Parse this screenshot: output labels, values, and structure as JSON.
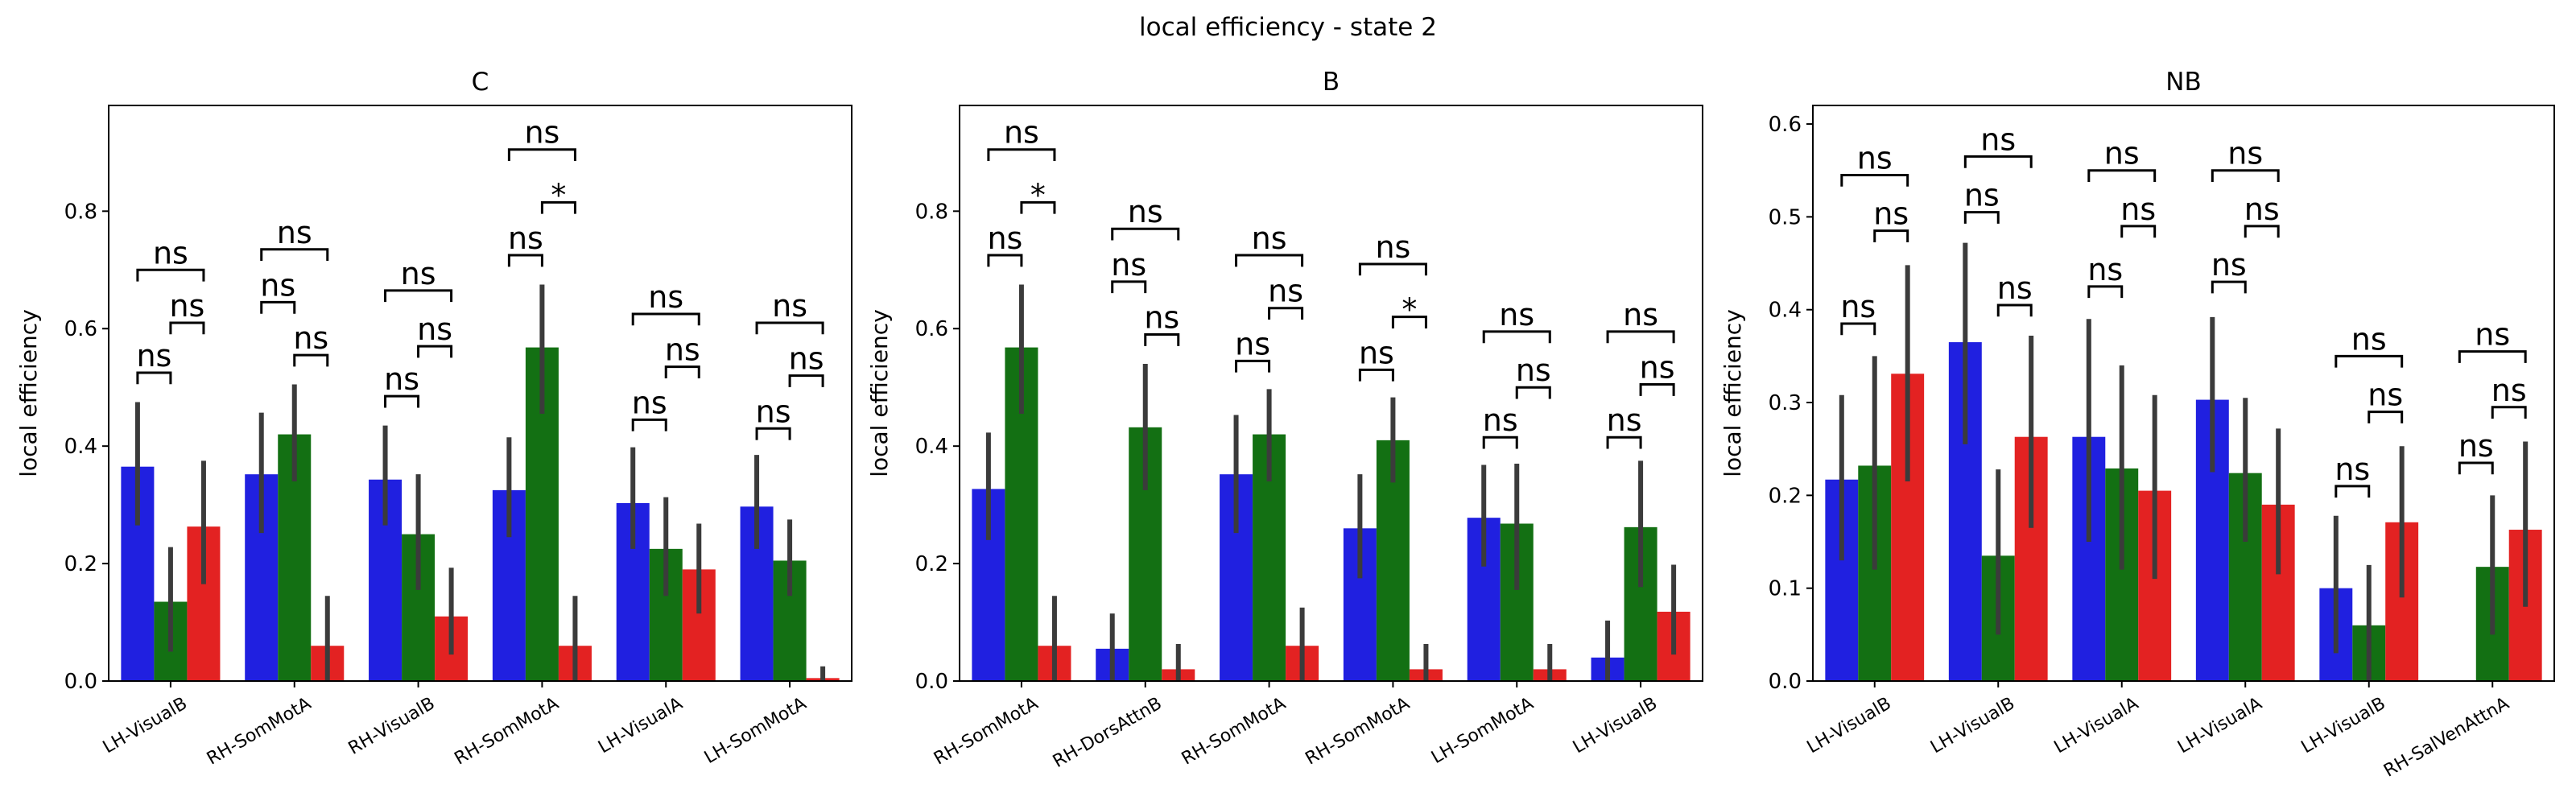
{
  "suptitle": "local efficiency - state 2",
  "colors": {
    "bar1": "#2020e0",
    "bar2": "#137013",
    "bar3": "#e32222",
    "err": "#3b3b3b"
  },
  "chart_data": [
    {
      "type": "bar",
      "title": "C",
      "ylabel": "local efficiency",
      "ylim": [
        0,
        0.98
      ],
      "yticks": [
        0.0,
        0.2,
        0.4,
        0.6,
        0.8
      ],
      "categories": [
        "LH-VisualB",
        "RH-SomMotA",
        "RH-VisualB",
        "RH-SomMotA",
        "LH-VisualA",
        "LH-SomMotA"
      ],
      "series": [
        {
          "values": [
            0.365,
            0.352,
            0.343,
            0.325,
            0.303,
            0.297
          ],
          "lo": [
            0.265,
            0.252,
            0.265,
            0.245,
            0.225,
            0.225
          ],
          "hi": [
            0.475,
            0.457,
            0.435,
            0.415,
            0.398,
            0.385
          ]
        },
        {
          "values": [
            0.135,
            0.42,
            0.25,
            0.568,
            0.225,
            0.205
          ],
          "lo": [
            0.05,
            0.34,
            0.155,
            0.455,
            0.145,
            0.145
          ],
          "hi": [
            0.228,
            0.505,
            0.352,
            0.675,
            0.313,
            0.275
          ]
        },
        {
          "values": [
            0.263,
            0.06,
            0.11,
            0.06,
            0.19,
            0.005
          ],
          "lo": [
            0.165,
            0.0,
            0.045,
            0.0,
            0.115,
            0.0
          ],
          "hi": [
            0.375,
            0.145,
            0.193,
            0.145,
            0.268,
            0.025
          ]
        }
      ],
      "annotations": [
        {
          "group": 0,
          "from": 0,
          "to": 1,
          "y": 0.525,
          "text": "ns"
        },
        {
          "group": 0,
          "from": 1,
          "to": 2,
          "y": 0.61,
          "text": "ns"
        },
        {
          "group": 0,
          "from": 0,
          "to": 2,
          "y": 0.7,
          "text": "ns"
        },
        {
          "group": 1,
          "from": 0,
          "to": 1,
          "y": 0.645,
          "text": "ns"
        },
        {
          "group": 1,
          "from": 1,
          "to": 2,
          "y": 0.555,
          "text": "ns"
        },
        {
          "group": 1,
          "from": 0,
          "to": 2,
          "y": 0.735,
          "text": "ns"
        },
        {
          "group": 2,
          "from": 0,
          "to": 1,
          "y": 0.485,
          "text": "ns"
        },
        {
          "group": 2,
          "from": 1,
          "to": 2,
          "y": 0.57,
          "text": "ns"
        },
        {
          "group": 2,
          "from": 0,
          "to": 2,
          "y": 0.665,
          "text": "ns"
        },
        {
          "group": 3,
          "from": 0,
          "to": 1,
          "y": 0.725,
          "text": "ns"
        },
        {
          "group": 3,
          "from": 1,
          "to": 2,
          "y": 0.815,
          "text": "*"
        },
        {
          "group": 3,
          "from": 0,
          "to": 2,
          "y": 0.905,
          "text": "ns"
        },
        {
          "group": 4,
          "from": 0,
          "to": 1,
          "y": 0.445,
          "text": "ns"
        },
        {
          "group": 4,
          "from": 1,
          "to": 2,
          "y": 0.535,
          "text": "ns"
        },
        {
          "group": 4,
          "from": 0,
          "to": 2,
          "y": 0.625,
          "text": "ns"
        },
        {
          "group": 5,
          "from": 0,
          "to": 1,
          "y": 0.43,
          "text": "ns"
        },
        {
          "group": 5,
          "from": 1,
          "to": 2,
          "y": 0.52,
          "text": "ns"
        },
        {
          "group": 5,
          "from": 0,
          "to": 2,
          "y": 0.61,
          "text": "ns"
        }
      ]
    },
    {
      "type": "bar",
      "title": "B",
      "ylabel": "local efficiency",
      "ylim": [
        0,
        0.98
      ],
      "yticks": [
        0.0,
        0.2,
        0.4,
        0.6,
        0.8
      ],
      "categories": [
        "RH-SomMotA",
        "RH-DorsAttnB",
        "RH-SomMotA",
        "RH-SomMotA",
        "LH-SomMotA",
        "LH-VisualB"
      ],
      "series": [
        {
          "values": [
            0.327,
            0.055,
            0.352,
            0.26,
            0.278,
            0.04
          ],
          "lo": [
            0.24,
            0.0,
            0.252,
            0.175,
            0.195,
            0.0
          ],
          "hi": [
            0.423,
            0.115,
            0.453,
            0.352,
            0.368,
            0.103
          ]
        },
        {
          "values": [
            0.568,
            0.432,
            0.42,
            0.41,
            0.268,
            0.262
          ],
          "lo": [
            0.455,
            0.325,
            0.34,
            0.338,
            0.155,
            0.16
          ],
          "hi": [
            0.675,
            0.54,
            0.497,
            0.483,
            0.37,
            0.375
          ]
        },
        {
          "values": [
            0.06,
            0.02,
            0.06,
            0.02,
            0.02,
            0.118
          ],
          "lo": [
            0.0,
            0.0,
            0.0,
            0.0,
            0.0,
            0.045
          ],
          "hi": [
            0.145,
            0.063,
            0.125,
            0.063,
            0.063,
            0.198
          ]
        }
      ],
      "annotations": [
        {
          "group": 0,
          "from": 0,
          "to": 1,
          "y": 0.725,
          "text": "ns"
        },
        {
          "group": 0,
          "from": 1,
          "to": 2,
          "y": 0.815,
          "text": "*"
        },
        {
          "group": 0,
          "from": 0,
          "to": 2,
          "y": 0.905,
          "text": "ns"
        },
        {
          "group": 1,
          "from": 0,
          "to": 1,
          "y": 0.68,
          "text": "ns"
        },
        {
          "group": 1,
          "from": 1,
          "to": 2,
          "y": 0.59,
          "text": "ns"
        },
        {
          "group": 1,
          "from": 0,
          "to": 2,
          "y": 0.77,
          "text": "ns"
        },
        {
          "group": 2,
          "from": 0,
          "to": 1,
          "y": 0.545,
          "text": "ns"
        },
        {
          "group": 2,
          "from": 1,
          "to": 2,
          "y": 0.635,
          "text": "ns"
        },
        {
          "group": 2,
          "from": 0,
          "to": 2,
          "y": 0.725,
          "text": "ns"
        },
        {
          "group": 3,
          "from": 0,
          "to": 1,
          "y": 0.53,
          "text": "ns"
        },
        {
          "group": 3,
          "from": 1,
          "to": 2,
          "y": 0.62,
          "text": "*"
        },
        {
          "group": 3,
          "from": 0,
          "to": 2,
          "y": 0.71,
          "text": "ns"
        },
        {
          "group": 4,
          "from": 0,
          "to": 1,
          "y": 0.415,
          "text": "ns"
        },
        {
          "group": 4,
          "from": 1,
          "to": 2,
          "y": 0.5,
          "text": "ns"
        },
        {
          "group": 4,
          "from": 0,
          "to": 2,
          "y": 0.595,
          "text": "ns"
        },
        {
          "group": 5,
          "from": 0,
          "to": 1,
          "y": 0.415,
          "text": "ns"
        },
        {
          "group": 5,
          "from": 1,
          "to": 2,
          "y": 0.505,
          "text": "ns"
        },
        {
          "group": 5,
          "from": 0,
          "to": 2,
          "y": 0.595,
          "text": "ns"
        }
      ]
    },
    {
      "type": "bar",
      "title": "NB",
      "ylabel": "local efficiency",
      "ylim": [
        0,
        0.62
      ],
      "yticks": [
        0.0,
        0.1,
        0.2,
        0.3,
        0.4,
        0.5,
        0.6
      ],
      "categories": [
        "LH-VisualB",
        "LH-VisualB",
        "LH-VisualA",
        "LH-VisualA",
        "LH-VisualB",
        "RH-SalVenAttnA"
      ],
      "series": [
        {
          "values": [
            0.217,
            0.365,
            0.263,
            0.303,
            0.1,
            0.0
          ],
          "lo": [
            0.13,
            0.255,
            0.15,
            0.225,
            0.03,
            0.0
          ],
          "hi": [
            0.308,
            0.472,
            0.39,
            0.392,
            0.178,
            0.0
          ]
        },
        {
          "values": [
            0.232,
            0.135,
            0.229,
            0.224,
            0.06,
            0.123
          ],
          "lo": [
            0.12,
            0.05,
            0.12,
            0.15,
            0.0,
            0.05
          ],
          "hi": [
            0.35,
            0.228,
            0.34,
            0.305,
            0.125,
            0.2
          ]
        },
        {
          "values": [
            0.331,
            0.263,
            0.205,
            0.19,
            0.171,
            0.163
          ],
          "lo": [
            0.215,
            0.165,
            0.11,
            0.115,
            0.09,
            0.08
          ],
          "hi": [
            0.448,
            0.372,
            0.308,
            0.272,
            0.253,
            0.258
          ]
        }
      ],
      "annotations": [
        {
          "group": 0,
          "from": 0,
          "to": 1,
          "y": 0.385,
          "text": "ns"
        },
        {
          "group": 0,
          "from": 1,
          "to": 2,
          "y": 0.485,
          "text": "ns"
        },
        {
          "group": 0,
          "from": 0,
          "to": 2,
          "y": 0.545,
          "text": "ns"
        },
        {
          "group": 1,
          "from": 0,
          "to": 1,
          "y": 0.505,
          "text": "ns"
        },
        {
          "group": 1,
          "from": 1,
          "to": 2,
          "y": 0.405,
          "text": "ns"
        },
        {
          "group": 1,
          "from": 0,
          "to": 2,
          "y": 0.565,
          "text": "ns"
        },
        {
          "group": 2,
          "from": 0,
          "to": 1,
          "y": 0.425,
          "text": "ns"
        },
        {
          "group": 2,
          "from": 1,
          "to": 2,
          "y": 0.49,
          "text": "ns"
        },
        {
          "group": 2,
          "from": 0,
          "to": 2,
          "y": 0.55,
          "text": "ns"
        },
        {
          "group": 3,
          "from": 0,
          "to": 1,
          "y": 0.43,
          "text": "ns"
        },
        {
          "group": 3,
          "from": 1,
          "to": 2,
          "y": 0.49,
          "text": "ns"
        },
        {
          "group": 3,
          "from": 0,
          "to": 2,
          "y": 0.55,
          "text": "ns"
        },
        {
          "group": 4,
          "from": 0,
          "to": 1,
          "y": 0.21,
          "text": "ns"
        },
        {
          "group": 4,
          "from": 1,
          "to": 2,
          "y": 0.29,
          "text": "ns"
        },
        {
          "group": 4,
          "from": 0,
          "to": 2,
          "y": 0.35,
          "text": "ns"
        },
        {
          "group": 5,
          "from": 0,
          "to": 1,
          "y": 0.235,
          "text": "ns"
        },
        {
          "group": 5,
          "from": 1,
          "to": 2,
          "y": 0.295,
          "text": "ns"
        },
        {
          "group": 5,
          "from": 0,
          "to": 2,
          "y": 0.355,
          "text": "ns"
        }
      ]
    }
  ]
}
